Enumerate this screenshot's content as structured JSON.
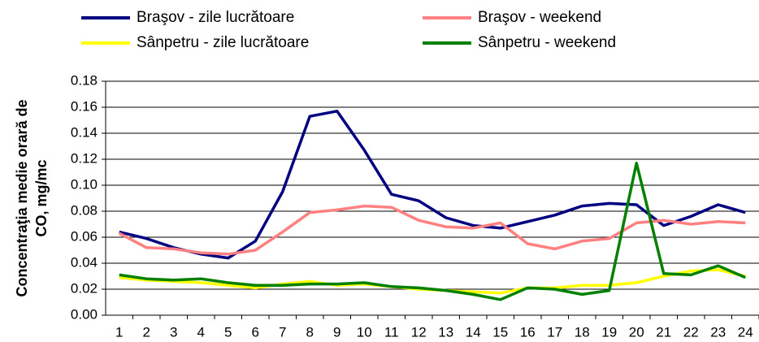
{
  "chart_data": {
    "type": "line",
    "y_label": [
      "Concentraţia medie orară de",
      "CO, mg/mc"
    ],
    "categories": [
      1,
      2,
      3,
      4,
      5,
      6,
      7,
      8,
      9,
      10,
      11,
      12,
      13,
      14,
      15,
      16,
      17,
      18,
      19,
      20,
      21,
      22,
      23,
      24
    ],
    "series": [
      {
        "name": "Braşov - zile lucrătoare",
        "color": "#000080",
        "values": [
          0.064,
          0.059,
          0.052,
          0.047,
          0.044,
          0.057,
          0.095,
          0.153,
          0.157,
          0.127,
          0.093,
          0.088,
          0.075,
          0.069,
          0.067,
          0.072,
          0.077,
          0.084,
          0.086,
          0.085,
          0.069,
          0.076,
          0.085,
          0.079
        ]
      },
      {
        "name": "Braşov - weekend",
        "color": "#ff8080",
        "values": [
          0.063,
          0.052,
          0.051,
          0.048,
          0.047,
          0.05,
          0.064,
          0.079,
          0.081,
          0.084,
          0.083,
          0.073,
          0.068,
          0.067,
          0.071,
          0.055,
          0.051,
          0.057,
          0.059,
          0.071,
          0.073,
          0.07,
          0.072,
          0.071
        ]
      },
      {
        "name": "Sânpetru - zile lucrătoare",
        "color": "#ffff00",
        "values": [
          0.029,
          0.027,
          0.026,
          0.025,
          0.023,
          0.021,
          0.024,
          0.026,
          0.023,
          0.024,
          0.022,
          0.02,
          0.019,
          0.018,
          0.017,
          0.021,
          0.021,
          0.023,
          0.023,
          0.025,
          0.03,
          0.034,
          0.035,
          0.03
        ]
      },
      {
        "name": "Sânpetru - weekend",
        "color": "#008000",
        "values": [
          0.031,
          0.028,
          0.027,
          0.028,
          0.025,
          0.023,
          0.023,
          0.024,
          0.024,
          0.025,
          0.022,
          0.021,
          0.019,
          0.016,
          0.012,
          0.021,
          0.02,
          0.016,
          0.019,
          0.117,
          0.032,
          0.031,
          0.038,
          0.029
        ]
      }
    ],
    "ylim": [
      0,
      0.18
    ],
    "yticks": [
      {
        "value": 0,
        "label": "0.00"
      },
      {
        "value": 0.02,
        "label": "0.02"
      },
      {
        "value": 0.04,
        "label": "0.04"
      },
      {
        "value": 0.06,
        "label": "0.06"
      },
      {
        "value": 0.08,
        "label": "0.08"
      },
      {
        "value": 0.1,
        "label": "0.10"
      },
      {
        "value": 0.12,
        "label": "0.12"
      },
      {
        "value": 0.14,
        "label": "0.14"
      },
      {
        "value": 0.16,
        "label": "0.16"
      },
      {
        "value": 0.18,
        "label": "0.18"
      }
    ],
    "grid": true
  }
}
